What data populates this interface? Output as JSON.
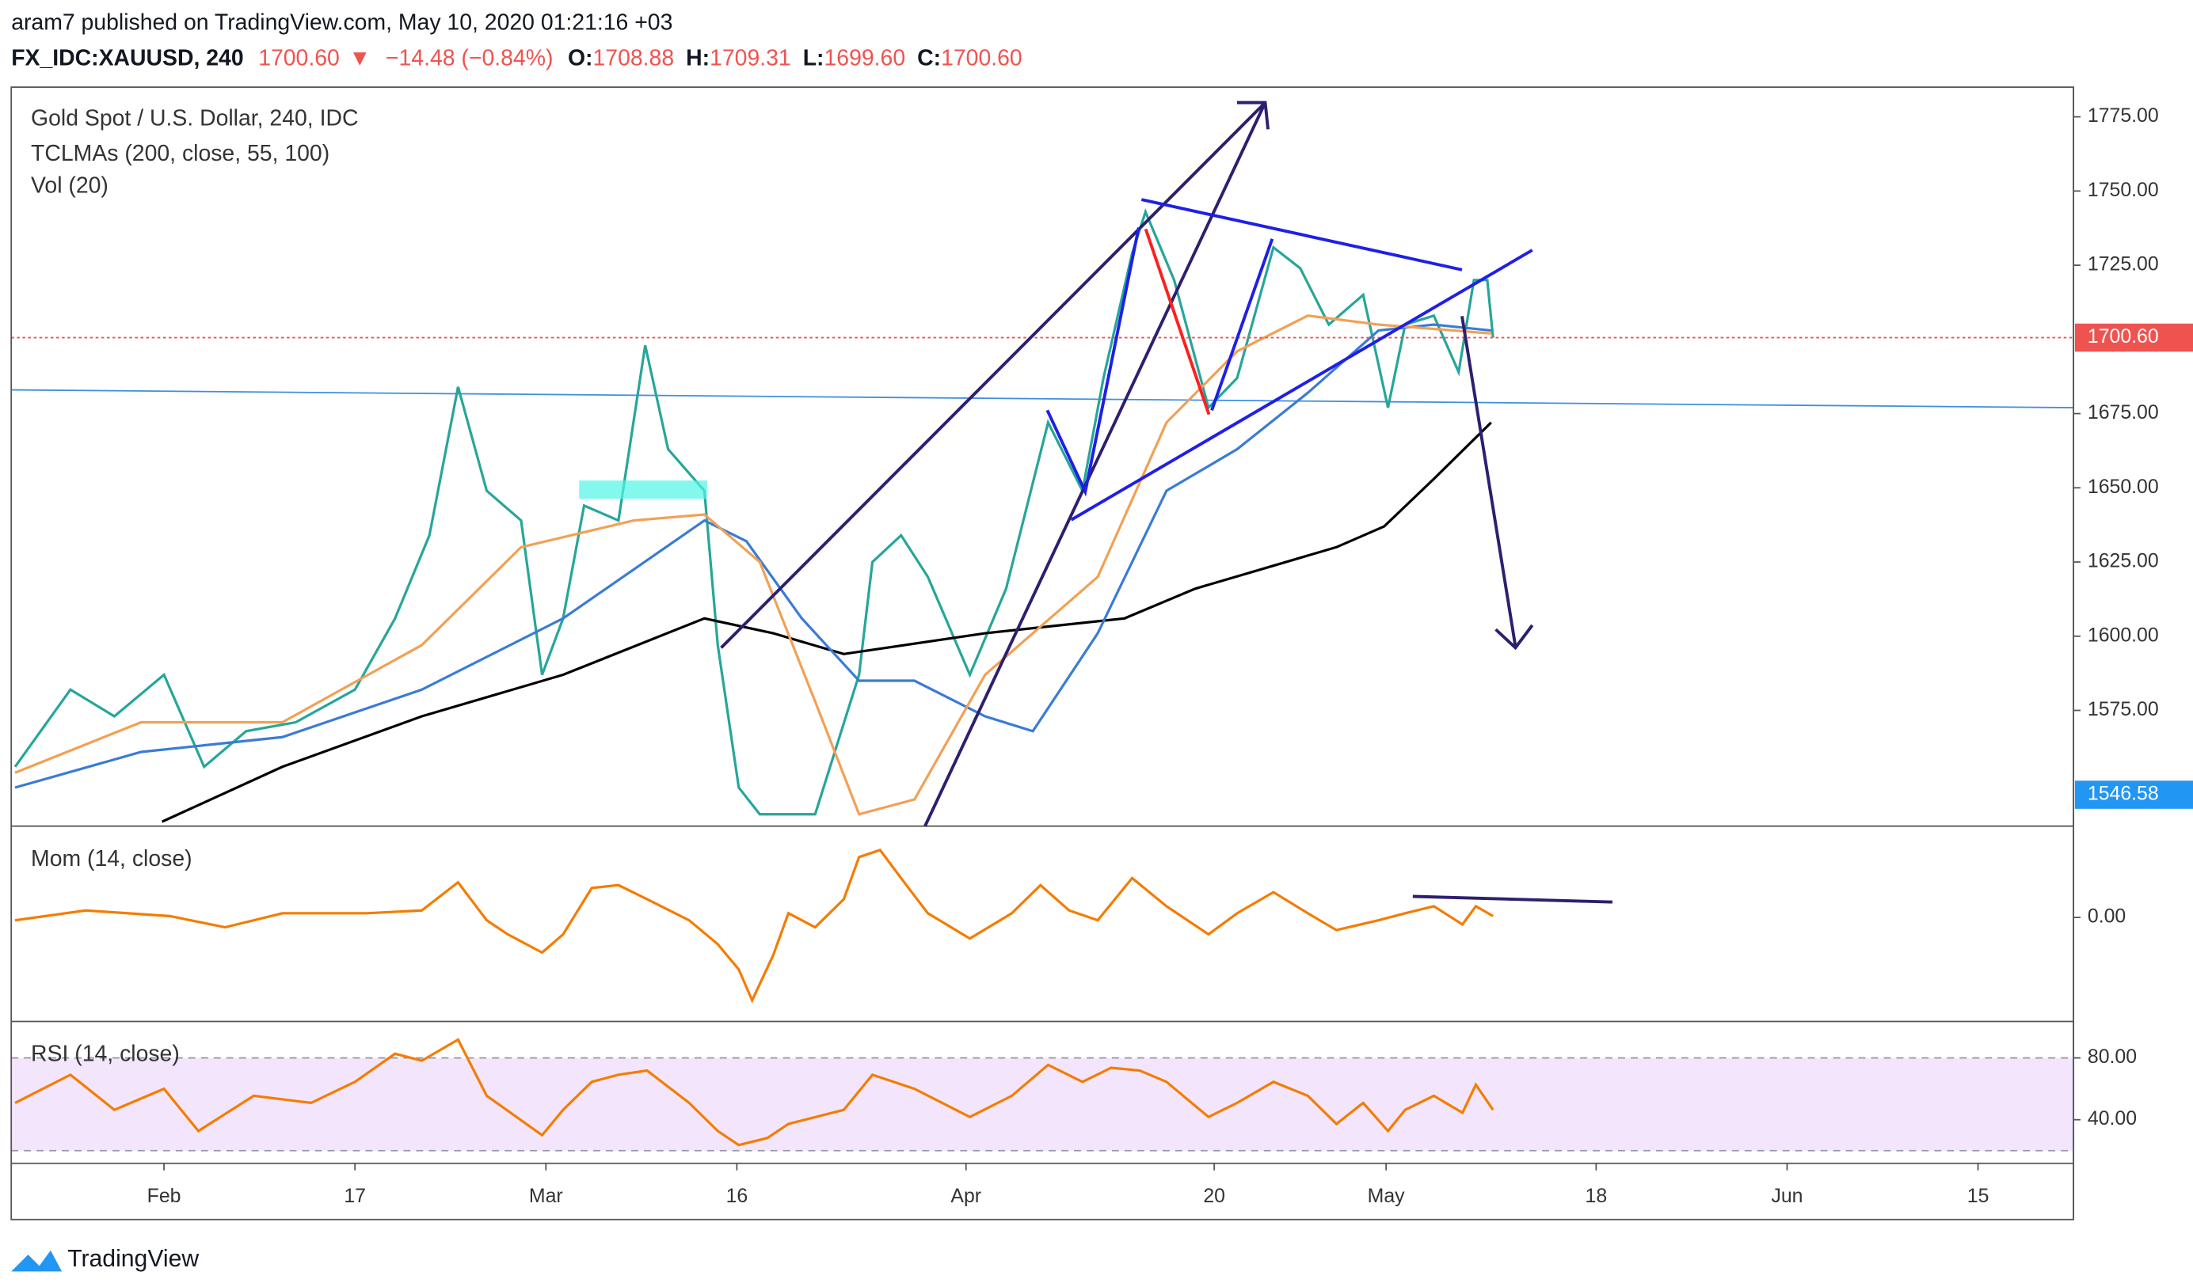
{
  "header": {
    "published": "aram7 published on TradingView.com, May 10, 2020 01:21:16 +03",
    "symbol": "FX_IDC:XAUUSD, 240",
    "last": "1700.60",
    "change": "−14.48 (−0.84%)",
    "ohlc": [
      {
        "label": "O:",
        "value": "1708.88"
      },
      {
        "label": "H:",
        "value": "1709.31"
      },
      {
        "label": "L:",
        "value": "1699.60"
      },
      {
        "label": "C:",
        "value": "1700.60"
      }
    ]
  },
  "footer": {
    "brand": "TradingView"
  },
  "chart_data": [
    {
      "type": "line",
      "title": "Gold Spot / U.S. Dollar, 240, IDC",
      "indicators": [
        "TCLMAs (200, close, 55, 100)",
        "Vol (20)"
      ],
      "xlim": [
        -8,
        100
      ],
      "ylim": [
        1536,
        1785
      ],
      "yticks": [
        {
          "value": 1575,
          "label": "1575.00"
        },
        {
          "value": 1600,
          "label": "1600.00"
        },
        {
          "value": 1625,
          "label": "1625.00"
        },
        {
          "value": 1650,
          "label": "1650.00"
        },
        {
          "value": 1675,
          "label": "1675.00"
        },
        {
          "value": 1725,
          "label": "1725.00"
        },
        {
          "value": 1750,
          "label": "1750.00"
        },
        {
          "value": 1775,
          "label": "1775.00"
        }
      ],
      "last_price": {
        "value": 1700.6,
        "label": "1700.60",
        "color": "#ef5350"
      },
      "scale_label": {
        "value": 1546.58,
        "label": "1546.58",
        "color": "#2196f3"
      },
      "series": [
        {
          "color": "#3d8fe0",
          "x": [
            -8,
            100
          ],
          "values": [
            1683,
            1677
          ]
        },
        {
          "color": "#26a69a",
          "x": [
            -7.8,
            -4.9,
            -2.6,
            0,
            2.1,
            4.3,
            6.9,
            10,
            12.1,
            13.9,
            15.4,
            16.9,
            18.7,
            19.8,
            20.9,
            22,
            23.8,
            25.2,
            26.4,
            28.3,
            29,
            30.1,
            31.2,
            34.1,
            36.4,
            37.1,
            38.6,
            40,
            42.2,
            44.1,
            46.3,
            48.1,
            49.2,
            50.7,
            51.4,
            52.9,
            54.7,
            56.2,
            58.1,
            59.5,
            61,
            62.8,
            64.1,
            65,
            66.5,
            67.8,
            68.6,
            69.3,
            69.6
          ],
          "values": [
            1556,
            1582,
            1573,
            1587,
            1556,
            1568,
            1571,
            1582,
            1606,
            1634,
            1684,
            1649,
            1639,
            1587,
            1606,
            1644,
            1639,
            1698,
            1663,
            1649,
            1597,
            1549,
            1540,
            1540,
            1587,
            1625,
            1634,
            1620,
            1587,
            1616,
            1672,
            1649,
            1687,
            1729,
            1743,
            1720,
            1677,
            1687,
            1731,
            1724,
            1705,
            1715,
            1677,
            1705,
            1708,
            1689,
            1720,
            1720,
            1700.6
          ]
        },
        {
          "color": "#000000",
          "x": [
            -0.1,
            6.2,
            13.5,
            20.9,
            28.3,
            31.9,
            35.6,
            43,
            50.3,
            54,
            57.7,
            61.4,
            63.9,
            66.5,
            69.5
          ],
          "values": [
            1537.5,
            1556,
            1573,
            1587,
            1606,
            1601,
            1594,
            1601,
            1606,
            1616,
            1623,
            1630,
            1637,
            1653,
            1672
          ]
        },
        {
          "color": "#3a7bd5",
          "x": [
            -7.8,
            -1.2,
            6.2,
            13.5,
            20.9,
            28.3,
            30.5,
            33.4,
            36.4,
            39.3,
            43,
            45.5,
            48.9,
            52.5,
            56.2,
            59.9,
            63.6,
            66.5,
            69.5
          ],
          "values": [
            1549,
            1561,
            1566,
            1582,
            1606,
            1639,
            1632,
            1606,
            1585,
            1585,
            1573,
            1568,
            1601,
            1649,
            1663,
            1682,
            1703,
            1705,
            1703
          ]
        },
        {
          "color": "#f2a055",
          "x": [
            -7.8,
            -1.2,
            6.2,
            13.5,
            18.7,
            24.6,
            28.3,
            31.2,
            34.1,
            36.4,
            39.3,
            43,
            48.9,
            52.5,
            56.2,
            59.9,
            63.6,
            69.5
          ],
          "values": [
            1554,
            1571,
            1571,
            1597,
            1630,
            1639,
            1641,
            1625,
            1578,
            1540,
            1545,
            1587,
            1620,
            1672,
            1696,
            1708,
            1705,
            1702
          ]
        }
      ]
    },
    {
      "type": "line",
      "title": "Mom (14, close)",
      "xlim": [
        -8,
        100
      ],
      "ylim": [
        -74,
        65
      ],
      "yticks": [
        {
          "value": 0,
          "label": "0.00"
        }
      ],
      "series": [
        {
          "color": "#f57c00",
          "x": [
            -7.8,
            -4.1,
            0.3,
            3.2,
            6.2,
            10.6,
            13.5,
            15.4,
            16.9,
            18,
            19.8,
            20.9,
            22.4,
            23.8,
            25.3,
            27.5,
            29,
            30.1,
            30.8,
            31.9,
            32.7,
            34.1,
            35.6,
            36.4,
            37.5,
            38.6,
            40,
            42.2,
            44.4,
            45.9,
            47.4,
            48.9,
            50.7,
            52.5,
            54.7,
            56.2,
            58.1,
            59.9,
            61.4,
            63.6,
            65,
            66.5,
            68,
            68.7,
            69.6
          ],
          "values": [
            -2,
            5,
            1,
            -7,
            3,
            3,
            5,
            25,
            -2,
            -12,
            -25,
            -12,
            21,
            23,
            13,
            -2,
            -19,
            -37,
            -59,
            -27,
            3,
            -7,
            13,
            43,
            48,
            28,
            3,
            -15,
            3,
            23,
            5,
            -2,
            28,
            8,
            -12,
            3,
            18,
            3,
            -9,
            -2,
            3,
            8,
            -5,
            8,
            1
          ]
        }
      ]
    },
    {
      "type": "line",
      "title": "RSI (14, close)",
      "xlim": [
        -8,
        100
      ],
      "ylim": [
        11.8,
        103.6
      ],
      "yticks": [
        {
          "value": 80,
          "label": "80.00"
        },
        {
          "value": 40,
          "label": "40.00"
        }
      ],
      "band": [
        20,
        80
      ],
      "band_color": "#f3e6fc",
      "xticks": [
        {
          "value": 0,
          "label": "Feb"
        },
        {
          "value": 10,
          "label": "17"
        },
        {
          "value": 20,
          "label": "Mar"
        },
        {
          "value": 30,
          "label": "16"
        },
        {
          "value": 42,
          "label": "Apr"
        },
        {
          "value": 55,
          "label": "20"
        },
        {
          "value": 64,
          "label": "May"
        },
        {
          "value": 75,
          "label": "18"
        },
        {
          "value": 85,
          "label": "Jun"
        },
        {
          "value": 95,
          "label": "15"
        }
      ],
      "series": [
        {
          "color": "#f57c00",
          "x": [
            -7.8,
            -4.9,
            -2.6,
            0,
            1.8,
            4.7,
            7.7,
            10,
            12.1,
            13.5,
            15.4,
            16.9,
            19.8,
            20.9,
            22.4,
            23.8,
            25.3,
            27.5,
            29,
            30.1,
            31.6,
            32.7,
            35.6,
            37.1,
            39.3,
            42.2,
            44.4,
            46.3,
            48.1,
            49.6,
            51.1,
            52.5,
            54.7,
            56.2,
            58.1,
            59.9,
            61.4,
            62.8,
            64.1,
            65,
            66.5,
            68,
            68.7,
            69.6
          ],
          "values": [
            50.9,
            69.1,
            46.4,
            60,
            32.7,
            55.5,
            50.9,
            64.5,
            82.7,
            78.2,
            91.8,
            55.5,
            30,
            46.4,
            64.5,
            69.1,
            71.8,
            50.9,
            32.7,
            23.6,
            28.2,
            37.3,
            46.4,
            69.1,
            60,
            41.8,
            55.5,
            75.5,
            64.5,
            73.6,
            71.8,
            64.5,
            41.8,
            50.9,
            64.5,
            55.5,
            37.3,
            50.9,
            32.7,
            46.4,
            55.5,
            44.5,
            62.7,
            46.4
          ]
        }
      ]
    }
  ]
}
